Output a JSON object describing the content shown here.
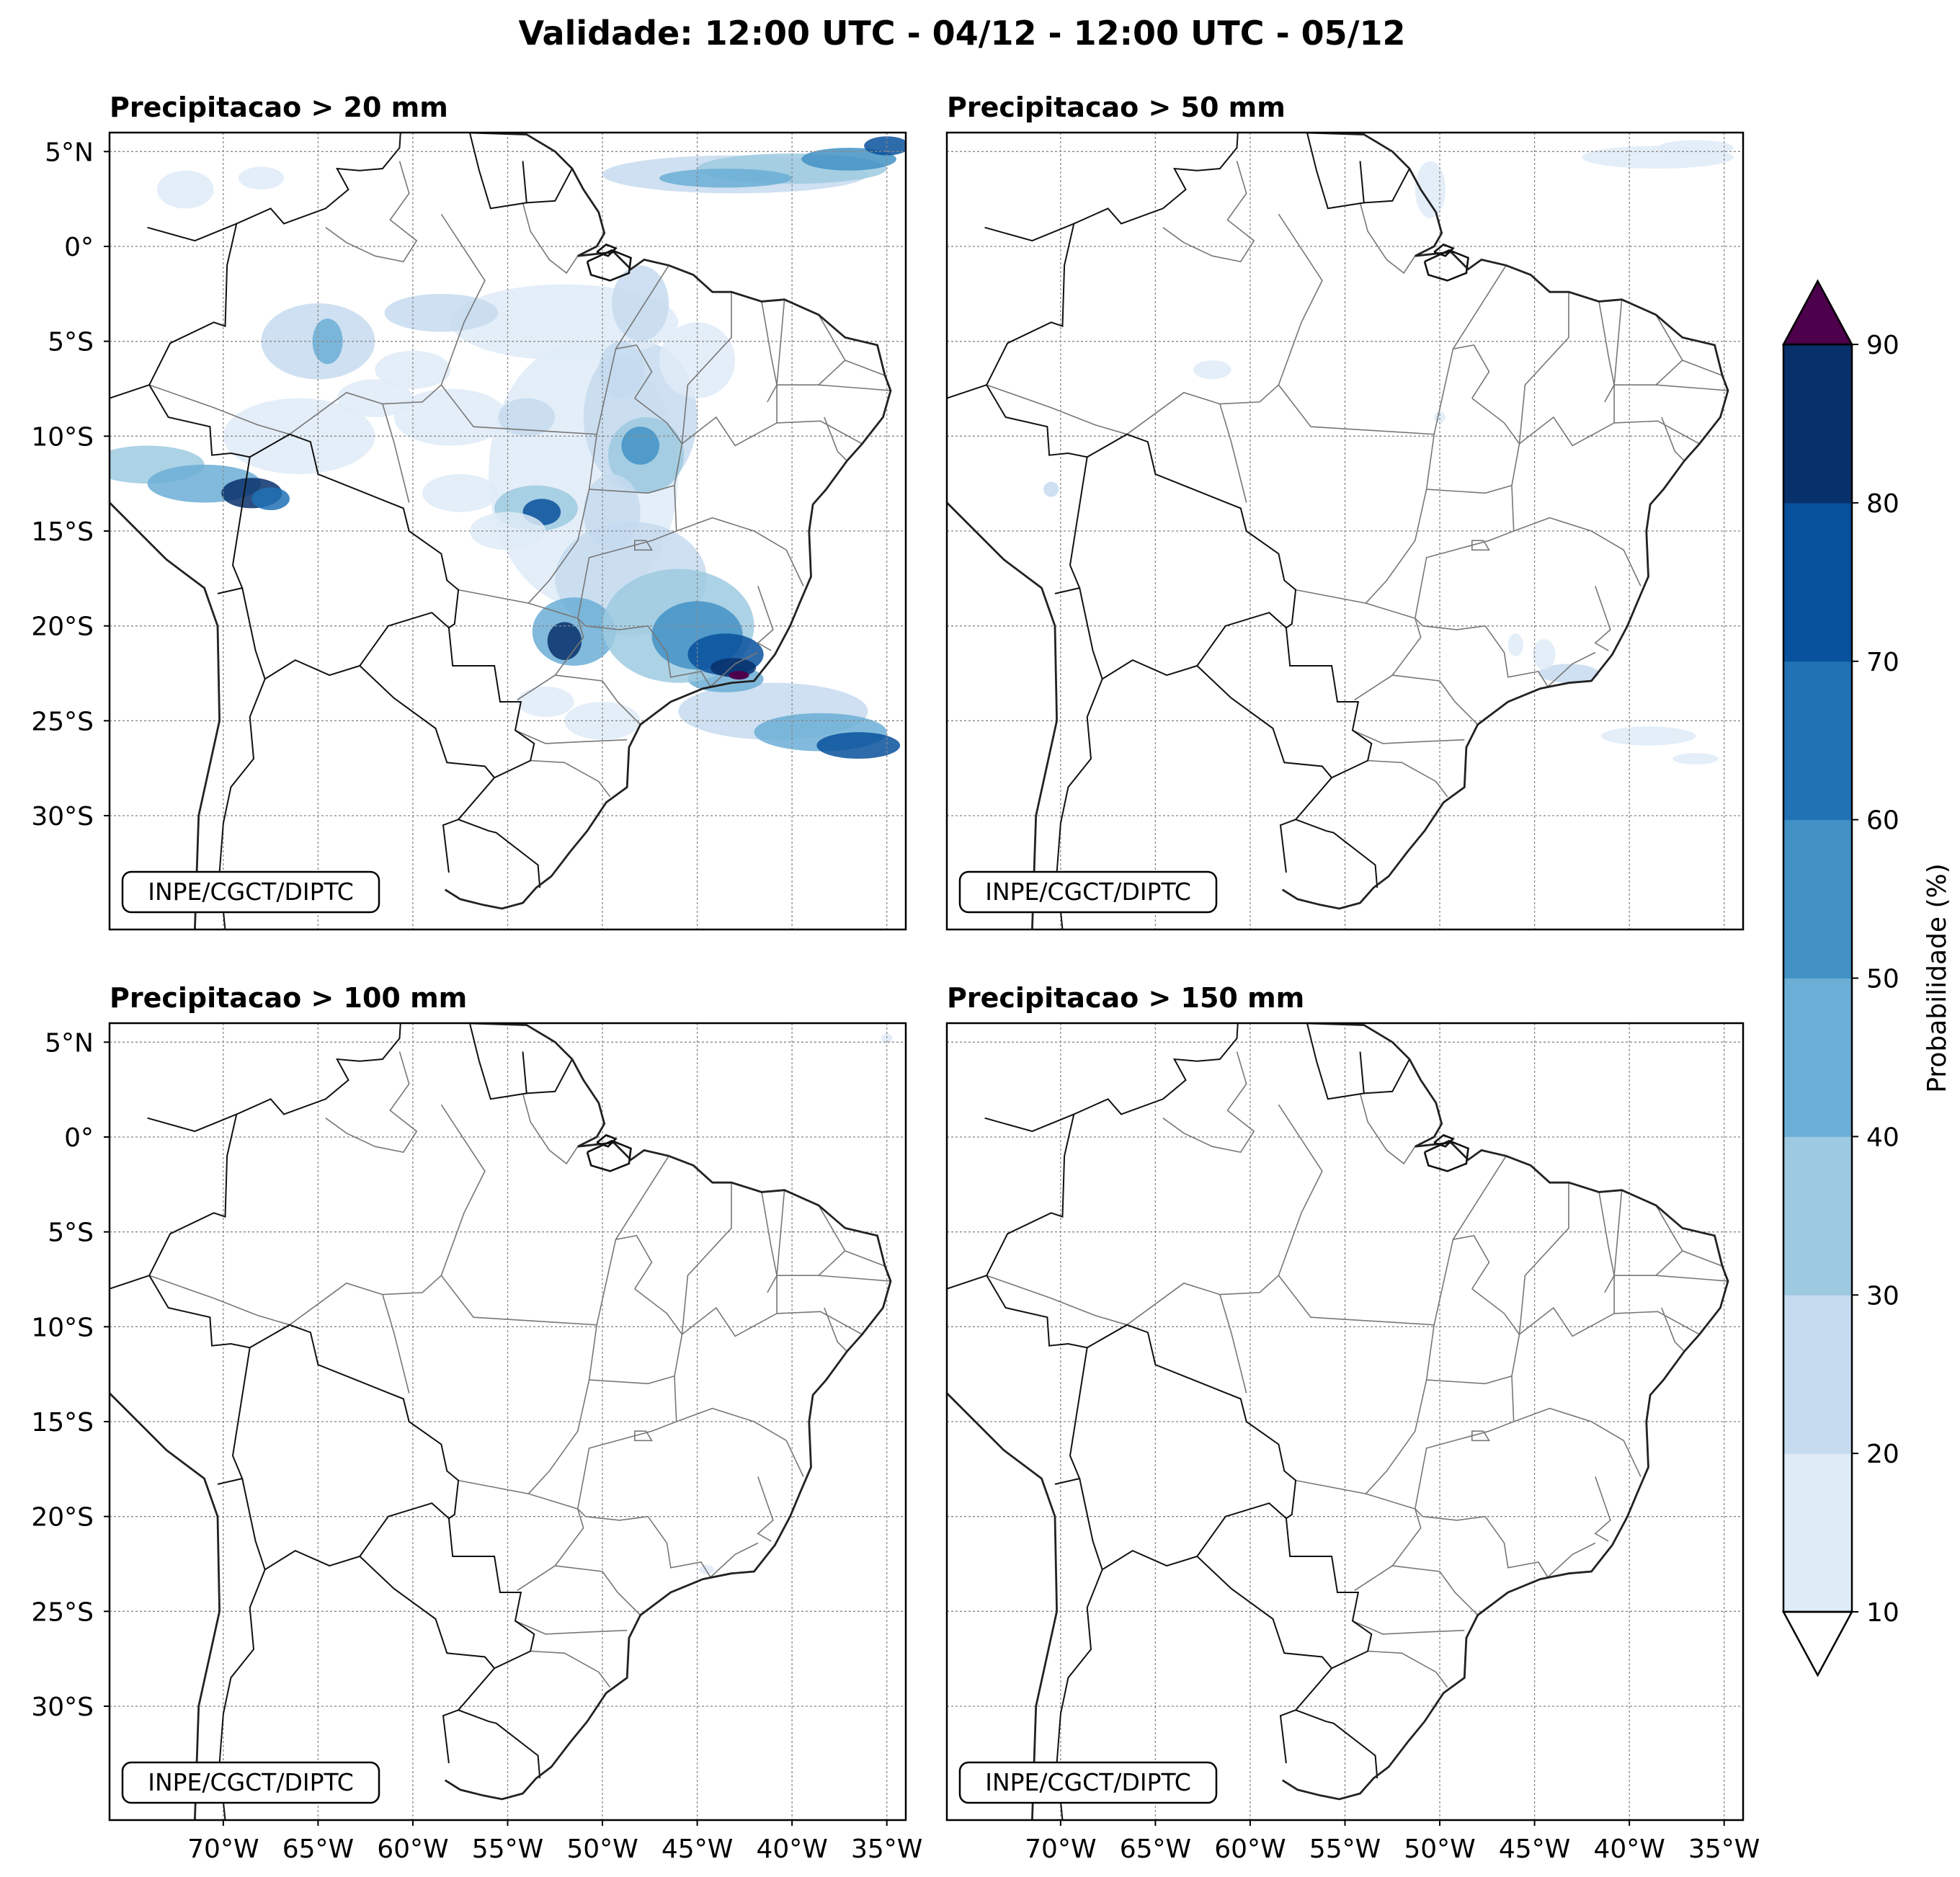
{
  "figure": {
    "title": "Validade: 12:00 UTC - 04/12 - 12:00 UTC - 05/12"
  },
  "panels": [
    {
      "id": "p20",
      "title": "Precipitacao > 20 mm",
      "credit": "INPE/CGCT/DIPTC",
      "threshold_mm": 20,
      "activity": "high"
    },
    {
      "id": "p50",
      "title": "Precipitacao > 50 mm",
      "credit": "INPE/CGCT/DIPTC",
      "threshold_mm": 50,
      "activity": "low"
    },
    {
      "id": "p100",
      "title": "Precipitacao > 100 mm",
      "credit": "INPE/CGCT/DIPTC",
      "threshold_mm": 100,
      "activity": "minimal"
    },
    {
      "id": "p150",
      "title": "Precipitacao > 150 mm",
      "credit": "INPE/CGCT/DIPTC",
      "threshold_mm": 150,
      "activity": "none"
    }
  ],
  "axes": {
    "lon_range": [
      -76,
      -34
    ],
    "lat_range": [
      -36,
      6
    ],
    "lat_ticks": [
      {
        "value": 5,
        "label": "5°N"
      },
      {
        "value": 0,
        "label": "0°"
      },
      {
        "value": -5,
        "label": "5°S"
      },
      {
        "value": -10,
        "label": "10°S"
      },
      {
        "value": -15,
        "label": "15°S"
      },
      {
        "value": -20,
        "label": "20°S"
      },
      {
        "value": -25,
        "label": "25°S"
      },
      {
        "value": -30,
        "label": "30°S"
      }
    ],
    "lon_ticks": [
      {
        "value": -70,
        "label": "70°W"
      },
      {
        "value": -65,
        "label": "65°W"
      },
      {
        "value": -60,
        "label": "60°W"
      },
      {
        "value": -55,
        "label": "55°W"
      },
      {
        "value": -50,
        "label": "50°W"
      },
      {
        "value": -45,
        "label": "45°W"
      },
      {
        "value": -40,
        "label": "40°W"
      },
      {
        "value": -35,
        "label": "35°W"
      }
    ],
    "grid": "dotted gray"
  },
  "colorbar": {
    "label": "Probabilidade (%)",
    "ticks": [
      "10",
      "20",
      "30",
      "40",
      "50",
      "60",
      "70",
      "80",
      "90"
    ],
    "levels": [
      10,
      20,
      30,
      40,
      50,
      60,
      70,
      80,
      90
    ],
    "colors": [
      "#dfebf7",
      "#c6dbef",
      "#9ecae1",
      "#6baed6",
      "#4292c6",
      "#2171b5",
      "#08519c",
      "#08306b"
    ],
    "over_color": "#4d004b",
    "under_color": "#ffffff",
    "extend": "both"
  }
}
